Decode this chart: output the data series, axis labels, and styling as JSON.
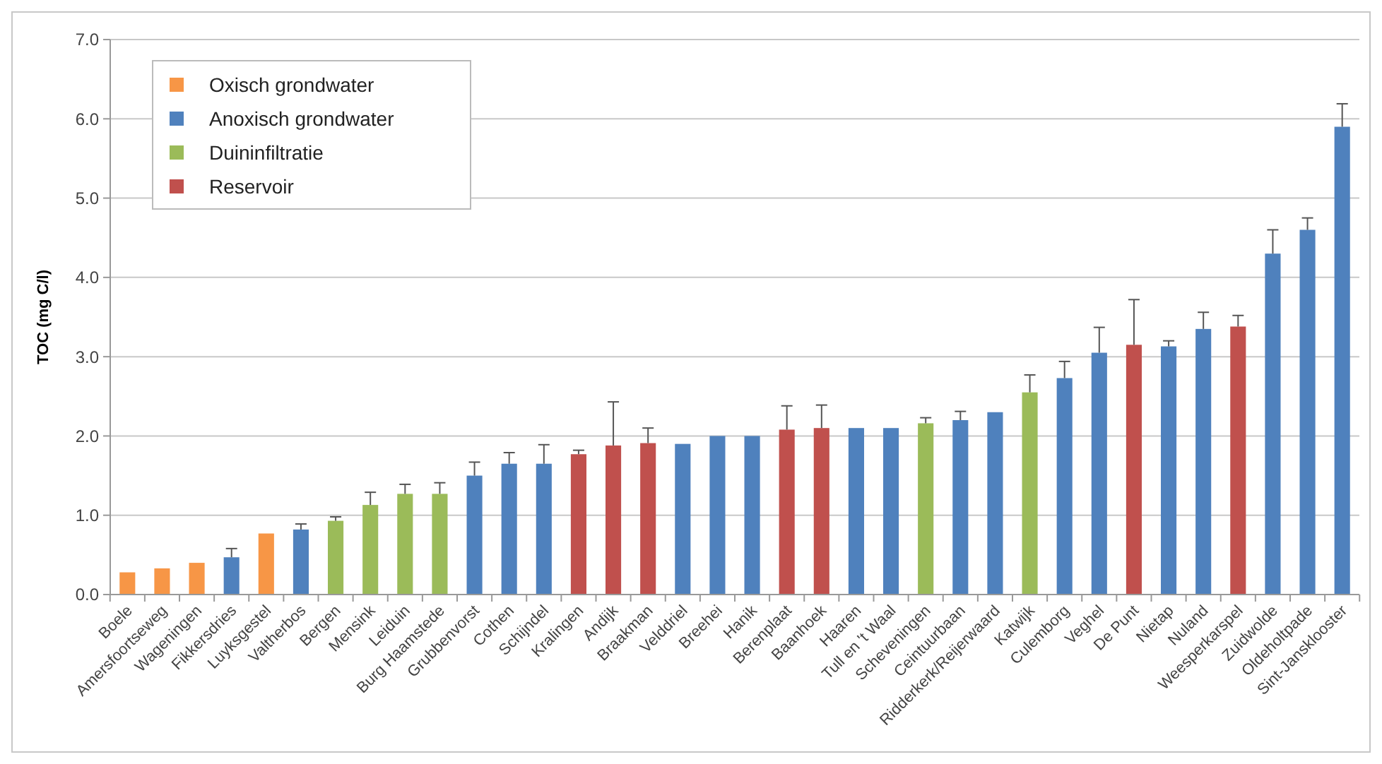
{
  "chart_data": {
    "type": "bar",
    "ylabel": "TOC (mg C/l)",
    "ylim": [
      0,
      7
    ],
    "yticks": [
      {
        "value": 0,
        "label": "0.0"
      },
      {
        "value": 1,
        "label": "1.0"
      },
      {
        "value": 2,
        "label": "2.0"
      },
      {
        "value": 3,
        "label": "3.0"
      },
      {
        "value": 4,
        "label": "4.0"
      },
      {
        "value": 5,
        "label": "5.0"
      },
      {
        "value": 6,
        "label": "6.0"
      },
      {
        "value": 7,
        "label": "7.0"
      }
    ],
    "grid": "y",
    "legend": "top left",
    "categories": [
      "Boele",
      "Amersfoortseweg",
      "Wageningen",
      "Fikkersdries",
      "Luyksgestel",
      "Valtherbos",
      "Bergen",
      "Mensink",
      "Leiduin",
      "Burg Haamstede",
      "Grubbenvorst",
      "Cothen",
      "Schijndel",
      "Kralingen",
      "Andijk",
      "Braakman",
      "Velddriel",
      "Breehei",
      "Hanik",
      "Berenplaat",
      "Baanhoek",
      "Haaren",
      "Tull en 't Waal",
      "Scheveningen",
      "Ceintuurbaan",
      "Ridderkerk/Reijerwaard",
      "Katwijk",
      "Culemborg",
      "Veghel",
      "De Punt",
      "Nietap",
      "Nuland",
      "Weesperkarspel",
      "Zuidwolde",
      "Oldeholtpade",
      "Sint-Jansklooster"
    ],
    "series": [
      {
        "name": "Oxisch grondwater",
        "color": "#f79646",
        "values": [
          0.28,
          0.33,
          0.4,
          null,
          0.77,
          null,
          null,
          null,
          null,
          null,
          null,
          null,
          null,
          null,
          null,
          null,
          null,
          null,
          null,
          null,
          null,
          null,
          null,
          null,
          null,
          null,
          null,
          null,
          null,
          null,
          null,
          null,
          null,
          null,
          null,
          null
        ]
      },
      {
        "name": "Anoxisch grondwater",
        "color": "#4f81bd",
        "values": [
          null,
          null,
          null,
          0.47,
          null,
          0.82,
          null,
          null,
          null,
          null,
          1.5,
          1.65,
          1.65,
          null,
          null,
          null,
          1.9,
          2.0,
          2.0,
          null,
          null,
          2.1,
          2.1,
          null,
          2.2,
          2.3,
          null,
          2.73,
          3.05,
          null,
          3.13,
          3.35,
          null,
          4.3,
          4.6,
          5.9
        ],
        "errors": [
          null,
          null,
          null,
          [
            0.47,
            0.58
          ],
          null,
          [
            0.82,
            0.89
          ],
          null,
          null,
          null,
          null,
          [
            1.5,
            1.67
          ],
          [
            1.65,
            1.79
          ],
          [
            1.65,
            1.89
          ],
          null,
          null,
          null,
          null,
          null,
          null,
          null,
          null,
          null,
          null,
          null,
          [
            2.2,
            2.31
          ],
          null,
          null,
          [
            2.73,
            2.94
          ],
          [
            3.05,
            3.37
          ],
          null,
          [
            3.13,
            3.2
          ],
          [
            3.35,
            3.56
          ],
          null,
          [
            4.3,
            4.6
          ],
          [
            4.6,
            4.75
          ],
          [
            5.9,
            6.19
          ]
        ]
      },
      {
        "name": "Duininfiltratie",
        "color": "#9bbb59",
        "values": [
          null,
          null,
          null,
          null,
          null,
          null,
          0.93,
          1.13,
          1.27,
          1.27,
          null,
          null,
          null,
          null,
          null,
          null,
          null,
          null,
          null,
          null,
          null,
          null,
          null,
          2.16,
          null,
          null,
          2.55,
          null,
          null,
          null,
          null,
          null,
          null,
          null,
          null,
          null
        ],
        "errors": [
          null,
          null,
          null,
          null,
          null,
          null,
          [
            0.93,
            0.98
          ],
          [
            1.13,
            1.29
          ],
          [
            1.27,
            1.39
          ],
          [
            1.27,
            1.41
          ],
          null,
          null,
          null,
          null,
          null,
          null,
          null,
          null,
          null,
          null,
          null,
          null,
          null,
          [
            2.16,
            2.23
          ],
          null,
          null,
          [
            2.55,
            2.77
          ],
          null,
          null,
          null,
          null,
          null,
          null,
          null,
          null,
          null
        ]
      },
      {
        "name": "Reservoir",
        "color": "#c0504d",
        "values": [
          null,
          null,
          null,
          null,
          null,
          null,
          null,
          null,
          null,
          null,
          null,
          null,
          null,
          1.77,
          1.88,
          1.91,
          null,
          null,
          null,
          2.08,
          2.1,
          null,
          null,
          null,
          null,
          null,
          null,
          null,
          null,
          3.15,
          null,
          null,
          3.38,
          null,
          null,
          null
        ],
        "errors": [
          null,
          null,
          null,
          null,
          null,
          null,
          null,
          null,
          null,
          null,
          null,
          null,
          null,
          [
            1.77,
            1.82
          ],
          [
            1.88,
            2.43
          ],
          [
            1.91,
            2.1
          ],
          null,
          null,
          null,
          [
            2.08,
            2.38
          ],
          [
            2.1,
            2.39
          ],
          null,
          null,
          null,
          null,
          null,
          null,
          null,
          null,
          [
            3.15,
            3.72
          ],
          null,
          null,
          [
            3.38,
            3.52
          ],
          null,
          null,
          null
        ]
      }
    ]
  }
}
